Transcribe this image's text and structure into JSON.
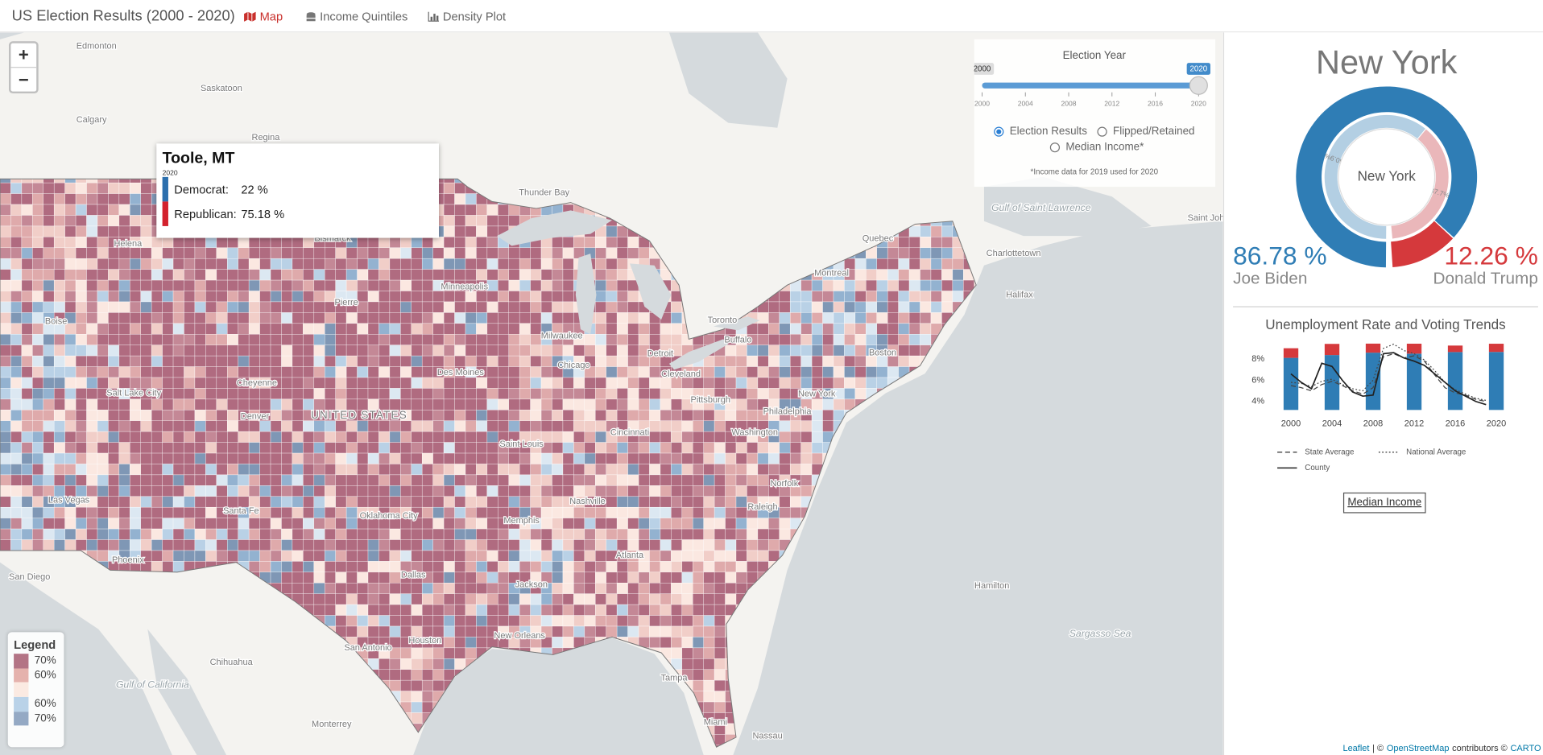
{
  "navbar": {
    "title": "US Election Results (2000 - 2020)",
    "tabs": [
      "Map",
      "Income Quintiles",
      "Density Plot"
    ]
  },
  "map": {
    "zoom": [
      "+",
      "−"
    ],
    "labels": [
      "Edmonton",
      "Saskatoon",
      "Calgary",
      "Regina",
      "Thunder Bay",
      "Quebec",
      "Montreal",
      "Gulf of Saint Lawrence",
      "Saint John",
      "Charlottetown",
      "Halifax",
      "Bismarck",
      "Minneapolis",
      "Pierre",
      "Helena",
      "Boise",
      "Salt Lake City",
      "Cheyenne",
      "Denver",
      "UNITED STATES",
      "Des Moines",
      "Chicago",
      "Milwaukee",
      "Detroit",
      "Toronto",
      "Buffalo",
      "Cleveland",
      "Pittsburgh",
      "New York",
      "Boston",
      "Philadelphia",
      "Washington",
      "Cincinnati",
      "Saint Louis",
      "Nashville",
      "Oklahoma City",
      "Las Vegas",
      "Santa Fe",
      "Phoenix",
      "San Diego",
      "Dallas",
      "Memphis",
      "Atlanta",
      "Raleigh",
      "Norfolk",
      "Jackson",
      "New Orleans",
      "Houston",
      "San Antonio",
      "Chihuahua",
      "Gulf of California",
      "Monterrey",
      "Tampa",
      "Miami",
      "Nassau",
      "Hamilton",
      "Sargasso Sea"
    ],
    "legend": {
      "title": "Legend",
      "items": [
        {
          "label": "70%",
          "color": "#b37485"
        },
        {
          "label": "60%",
          "color": "#e5b2ad"
        },
        {
          "label": null,
          "color": "#fbeae2"
        },
        {
          "label": "60%",
          "color": "#b9d2e8"
        },
        {
          "label": "70%",
          "color": "#94a9c4"
        }
      ]
    },
    "attribution": [
      "Leaflet",
      "| ©",
      "OpenStreetMap",
      "contributors ©",
      "CARTO"
    ]
  },
  "tooltip": {
    "title": "Toole, MT",
    "year": "2020",
    "rows": [
      {
        "party": "Democrat:",
        "value": "22 %",
        "color": "#2c6fad"
      },
      {
        "party": "Republican:",
        "value": "75.18 %",
        "color": "#d3212d"
      }
    ]
  },
  "controls": {
    "label": "Election Year",
    "min": 2000,
    "max": 2020,
    "value": 2020,
    "ticks": [
      2000,
      2004,
      2008,
      2012,
      2016,
      2020
    ],
    "options": [
      "Election Results",
      "Flipped/Retained",
      "Median Income*"
    ],
    "selected": 0,
    "note": "*Income data for 2019 used for 2020"
  },
  "chart_data": [
    {
      "type": "donut",
      "title": "New York",
      "center_label": "New York",
      "categories": [
        "Joe Biden",
        "Donald Trump"
      ],
      "series": [
        {
          "colors": [
            "#2f7db5",
            "#d5393c"
          ],
          "values": [
            86.78,
            12.26
          ],
          "value_labels": [
            "86.78 %",
            "12.26 %"
          ]
        },
        {
          "colors": [
            "#b3cfe3",
            "#eab7ba"
          ],
          "values": [
            60.9,
            37.7
          ],
          "value_labels": [
            "60.9%",
            "37.7%"
          ]
        }
      ]
    },
    {
      "type": "bar-line",
      "title": "Unemployment Rate and Voting Trends",
      "x": [
        2000,
        2001,
        2002,
        2003,
        2004,
        2005,
        2006,
        2007,
        2008,
        2009,
        2010,
        2011,
        2012,
        2013,
        2014,
        2015,
        2016,
        2017,
        2018,
        2019
      ],
      "xlim": [
        1998,
        2021
      ],
      "xticks": [
        2000,
        2004,
        2008,
        2012,
        2016,
        2020
      ],
      "ylim": [
        3.2,
        9.5
      ],
      "yticks": [
        {
          "value": 4,
          "label": "4%"
        },
        {
          "value": 6,
          "label": "6%"
        },
        {
          "value": 8,
          "label": "8%"
        }
      ],
      "series": [
        {
          "name": "State Average",
          "dash": "dashed",
          "color": "#444444",
          "values": [
            5.5,
            5.3,
            5.0,
            5.6,
            5.9,
            5.5,
            5.0,
            4.7,
            5.3,
            8.2,
            8.5,
            8.1,
            8.3,
            7.8,
            6.5,
            5.3,
            4.8,
            4.6,
            4.2,
            4.0
          ]
        },
        {
          "name": "National Average",
          "dash": "dotted",
          "color": "#444444",
          "values": [
            5.8,
            5.7,
            5.4,
            5.9,
            6.1,
            5.6,
            5.2,
            5.0,
            6.0,
            9.0,
            9.4,
            8.8,
            8.5,
            7.9,
            6.9,
            5.8,
            5.1,
            4.7,
            4.3,
            4.1
          ]
        },
        {
          "name": "County",
          "dash": "solid",
          "color": "#222222",
          "values": [
            6.6,
            5.8,
            5.2,
            7.6,
            7.3,
            6.0,
            4.9,
            4.5,
            4.6,
            8.5,
            8.6,
            8.1,
            7.8,
            7.4,
            6.6,
            5.8,
            5.0,
            4.5,
            4.0,
            3.7
          ]
        }
      ],
      "bars": {
        "x": [
          2000,
          2004,
          2008,
          2012,
          2016,
          2020
        ],
        "axis": "y2",
        "series": [
          {
            "color": "#2f7db5",
            "values": [
              77.9,
              82.1,
              85.7,
              84.2,
              86.6,
              86.78
            ]
          },
          {
            "color": "#d5393c",
            "values": [
              14.4,
              16.7,
              13.5,
              14.9,
              9.7,
              12.26
            ]
          }
        ]
      },
      "y2lim": [
        0,
        100
      ]
    }
  ],
  "sidebar": {
    "button": "Median Income"
  }
}
